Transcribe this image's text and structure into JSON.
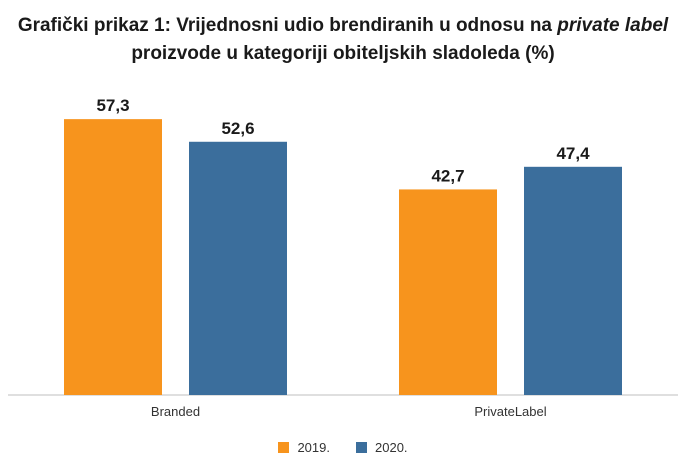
{
  "chart_data": {
    "type": "bar",
    "title": {
      "part1": "Grafički prikaz 1: Vrijednosni udio brendiranih u odnosu na ",
      "italic": "private label",
      "part2": "proizvode u kategoriji obiteljskih sladoleda (%)"
    },
    "categories": [
      "Branded",
      "PrivateLabel"
    ],
    "series": [
      {
        "name": "2019.",
        "color": "#F7941D",
        "values": [
          57.3,
          42.7
        ],
        "labels": [
          "57,3",
          "42,7"
        ]
      },
      {
        "name": "2020.",
        "color": "#3B6E9C",
        "values": [
          52.6,
          47.4
        ],
        "labels": [
          "52,6",
          "47,4"
        ]
      }
    ],
    "ylim": [
      0,
      70
    ],
    "grid": false,
    "legend": "bottom",
    "xlabel": "",
    "ylabel": ""
  }
}
